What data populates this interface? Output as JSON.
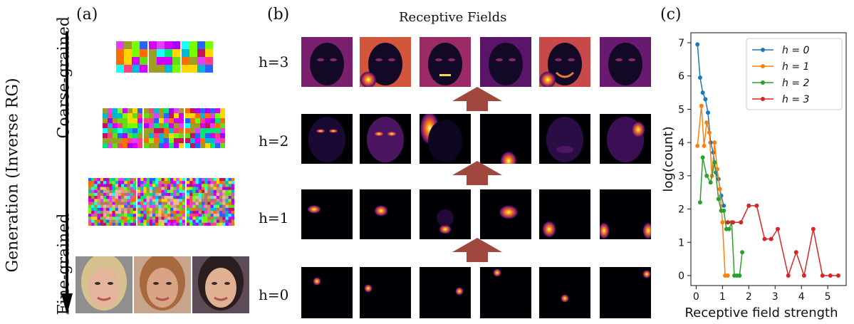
{
  "panels": {
    "a": "(a)",
    "b": "(b)",
    "c": "(c)"
  },
  "panel_a": {
    "axis_label": "Generation (Inverse RG)",
    "top_label": "Coarse-grained",
    "bottom_label": "Fine-grained"
  },
  "panel_b": {
    "title": "Receptive Fields",
    "rows": [
      "h=3",
      "h=2",
      "h=1",
      "h=0"
    ]
  },
  "colors": {
    "h0": "#1f77b4",
    "h1": "#ff7f0e",
    "h2": "#2ca02c",
    "h3": "#d62728",
    "arrow": "#a0483d"
  },
  "chart_data": {
    "type": "line",
    "xlabel": "Receptive field strength",
    "ylabel": "log(count)",
    "xlim": [
      -0.2,
      5.7
    ],
    "ylim": [
      -0.3,
      7.3
    ],
    "xticks": [
      0,
      1,
      2,
      3,
      4,
      5
    ],
    "yticks": [
      0,
      1,
      2,
      3,
      4,
      5,
      6,
      7
    ],
    "legend_position": "top-right",
    "series": [
      {
        "name": "h = 0",
        "color": "#1f77b4",
        "x": [
          0.05,
          0.15,
          0.25,
          0.35,
          0.45,
          0.55,
          0.65,
          0.75,
          0.85,
          0.95,
          1.05
        ],
        "y": [
          6.95,
          5.95,
          5.5,
          5.3,
          4.9,
          4.0,
          3.7,
          3.1,
          2.9,
          2.4,
          2.1
        ]
      },
      {
        "name": "h = 1",
        "color": "#ff7f0e",
        "x": [
          0.05,
          0.2,
          0.3,
          0.4,
          0.5,
          0.6,
          0.7,
          0.8,
          0.9,
          1.0,
          1.1,
          1.2
        ],
        "y": [
          3.9,
          5.1,
          3.9,
          4.6,
          4.3,
          3.0,
          4.0,
          3.2,
          2.6,
          1.6,
          0.0,
          0.0
        ]
      },
      {
        "name": "h = 2",
        "color": "#2ca02c",
        "x": [
          0.15,
          0.25,
          0.4,
          0.55,
          0.7,
          0.85,
          0.95,
          1.05,
          1.15,
          1.25,
          1.35,
          1.45,
          1.55,
          1.65,
          1.75
        ],
        "y": [
          2.2,
          3.55,
          3.0,
          2.8,
          3.4,
          2.3,
          1.95,
          1.95,
          1.4,
          1.4,
          1.6,
          0.0,
          0.0,
          0.0,
          0.7
        ]
      },
      {
        "name": "h = 3",
        "color": "#d62728",
        "x": [
          1.2,
          1.4,
          1.7,
          2.0,
          2.3,
          2.6,
          2.85,
          3.1,
          3.5,
          3.8,
          4.1,
          4.45,
          4.8,
          5.1,
          5.4
        ],
        "y": [
          1.6,
          1.6,
          1.6,
          2.1,
          2.1,
          1.1,
          1.1,
          1.4,
          0.0,
          0.7,
          0.0,
          1.4,
          0.0,
          0.0,
          0.0
        ]
      }
    ]
  }
}
